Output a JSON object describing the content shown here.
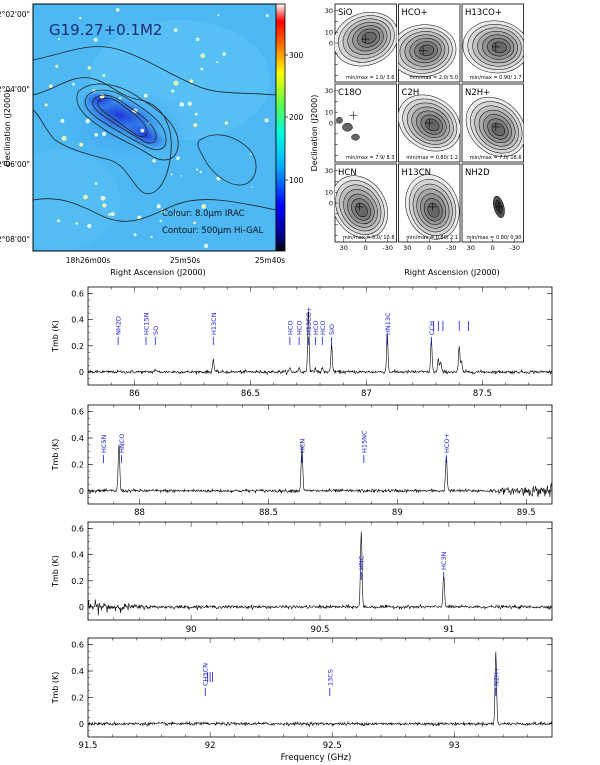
{
  "figure": {
    "image_panel": {
      "title": "G19.27+0.1M2",
      "caption_colour": "Colour: 8.0μm IRAC",
      "caption_contour": "Contour: 500μm Hi-GAL",
      "colorbar_ticks": [
        "300",
        "200",
        "100"
      ],
      "y_ticks": [
        "-12°02'00\"",
        "-12°04'00\"",
        "-12°06'00\"",
        "-12°08'00\""
      ],
      "x_ticks": [
        "18h26m00s",
        "25m50s",
        "25m40s"
      ],
      "ylabel": "Declination (J2000)",
      "xlabel": "Right Ascension (J2000)"
    },
    "maps_panel": {
      "ylabel": "Declination (J2000)",
      "xlabel": "Right Ascension (J2000)",
      "y_ticks": [
        "30",
        "20",
        "10",
        "0",
        "-10",
        "-20",
        "-30"
      ],
      "x_ticks": [
        "30",
        "0",
        "-30"
      ],
      "maps": [
        {
          "label": "SiO",
          "minmax": "min/max = 1.0/ 3.6"
        },
        {
          "label": "HCO+",
          "minmax": "min/max = 2.0/ 5.0"
        },
        {
          "label": "H13CO+",
          "minmax": "min/max = 0.90/ 1.7"
        },
        {
          "label": "C18O",
          "minmax": "min/max = 7.9/ 8.3"
        },
        {
          "label": "C2H",
          "minmax": "min/max = 0.80/ 1.2"
        },
        {
          "label": "N2H+",
          "minmax": "min/max = 7.0/ 18.6"
        },
        {
          "label": "HCN",
          "minmax": "min/max = 5.0/ 10.8"
        },
        {
          "label": "H13CN",
          "minmax": "min/max = 0.80/ 2.1"
        },
        {
          "label": "NH2D",
          "minmax": "min/max = 0.80/ 0.90"
        }
      ]
    },
    "spectra": {
      "ylabel": "Tmb (K)",
      "xlabel": "Frequency (GHz)",
      "line_color": "#1a1ad6"
    }
  },
  "chart_data": [
    {
      "type": "line",
      "title": "",
      "xlabel": "",
      "ylabel": "Tmb (K)",
      "xlim": [
        85.8,
        87.8
      ],
      "ylim": [
        -0.1,
        0.65
      ],
      "x_ticks": [
        86,
        86.5,
        87,
        87.5
      ],
      "y_ticks": [
        0,
        0.2,
        0.4,
        0.6
      ],
      "noise": 0.006,
      "peaks": [
        {
          "x": 86.09,
          "y": 0.02
        },
        {
          "x": 86.34,
          "y": 0.1
        },
        {
          "x": 86.67,
          "y": 0.03
        },
        {
          "x": 86.71,
          "y": 0.03
        },
        {
          "x": 86.75,
          "y": 0.5
        },
        {
          "x": 86.78,
          "y": 0.03
        },
        {
          "x": 86.81,
          "y": 0.03
        },
        {
          "x": 86.85,
          "y": 0.22
        },
        {
          "x": 87.09,
          "y": 0.3
        },
        {
          "x": 87.28,
          "y": 0.25
        },
        {
          "x": 87.31,
          "y": 0.1
        },
        {
          "x": 87.32,
          "y": 0.08
        },
        {
          "x": 87.4,
          "y": 0.2
        },
        {
          "x": 87.41,
          "y": 0.08
        }
      ],
      "lines": [
        {
          "x": 85.93,
          "label": "NH2D"
        },
        {
          "x": 86.05,
          "label": "HC15N"
        },
        {
          "x": 86.09,
          "label": "SO"
        },
        {
          "x": 86.34,
          "label": "H13CN"
        },
        {
          "x": 86.67,
          "label": "HCO"
        },
        {
          "x": 86.71,
          "label": "HCO"
        },
        {
          "x": 86.75,
          "label": "H13CO+"
        },
        {
          "x": 86.78,
          "label": "HCO"
        },
        {
          "x": 86.81,
          "label": "HCO"
        },
        {
          "x": 86.85,
          "label": "SiO"
        },
        {
          "x": 87.09,
          "label": "HN13C"
        },
        {
          "x": 87.28,
          "label": "CCH"
        }
      ],
      "markers": [
        87.29,
        87.31,
        87.33,
        87.4,
        87.44
      ]
    },
    {
      "type": "line",
      "title": "",
      "xlabel": "",
      "ylabel": "Tmb (K)",
      "xlim": [
        87.8,
        89.6
      ],
      "ylim": [
        -0.1,
        0.65
      ],
      "x_ticks": [
        88,
        88.5,
        89,
        89.5
      ],
      "y_ticks": [
        0,
        0.2,
        0.4,
        0.6
      ],
      "noise": 0.006,
      "noisy_from": 89.35,
      "peaks": [
        {
          "x": 87.92,
          "y": 0.35
        },
        {
          "x": 88.63,
          "y": 0.35
        },
        {
          "x": 89.19,
          "y": 0.27
        }
      ],
      "lines": [
        {
          "x": 87.86,
          "label": "HC5N"
        },
        {
          "x": 87.93,
          "label": "HNCO"
        },
        {
          "x": 88.63,
          "label": "HCN"
        },
        {
          "x": 88.87,
          "label": "H15NC"
        },
        {
          "x": 89.19,
          "label": "HCO+"
        }
      ],
      "markers": []
    },
    {
      "type": "line",
      "title": "",
      "xlabel": "",
      "ylabel": "Tmb (K)",
      "xlim": [
        89.6,
        91.4
      ],
      "ylim": [
        -0.1,
        0.65
      ],
      "x_ticks": [
        90,
        90.5,
        91
      ],
      "y_ticks": [
        0,
        0.2,
        0.4,
        0.6
      ],
      "noise": 0.006,
      "noisy_until": 89.85,
      "peaks": [
        {
          "x": 90.66,
          "y": 0.58
        },
        {
          "x": 90.98,
          "y": 0.25
        }
      ],
      "lines": [
        {
          "x": 90.66,
          "label": "HNC"
        },
        {
          "x": 90.98,
          "label": "HC3N"
        }
      ],
      "markers": []
    },
    {
      "type": "line",
      "title": "",
      "xlabel": "Frequency (GHz)",
      "ylabel": "Tmb (K)",
      "xlim": [
        91.5,
        93.4
      ],
      "ylim": [
        -0.1,
        0.65
      ],
      "x_ticks": [
        91.5,
        92,
        92.5,
        93
      ],
      "y_ticks": [
        0,
        0.2,
        0.4,
        0.6
      ],
      "noise": 0.006,
      "peaks": [
        {
          "x": 93.17,
          "y": 0.55
        }
      ],
      "lines": [
        {
          "x": 91.98,
          "label": "CH3CN"
        },
        {
          "x": 92.49,
          "label": "13CS"
        },
        {
          "x": 93.17,
          "label": "N2H+"
        }
      ],
      "markers": [
        91.99,
        92.0,
        92.01
      ]
    }
  ]
}
